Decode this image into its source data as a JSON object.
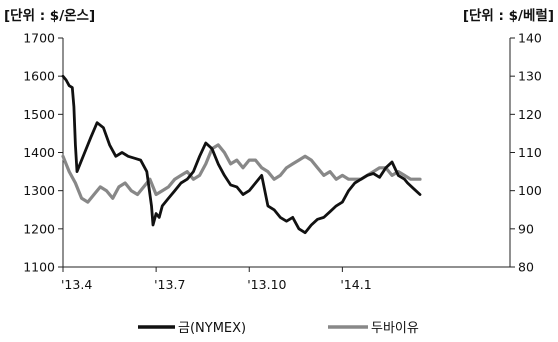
{
  "chart_data": {
    "type": "line",
    "title": "",
    "y_left_unit": "[단위 : $/온스]",
    "y_right_unit": "[단위 : $/베럴]",
    "y_left_lim": [
      1100,
      1700
    ],
    "y_left_ticks": [
      1100,
      1200,
      1300,
      1400,
      1500,
      1600,
      1700
    ],
    "y_right_lim": [
      80,
      140
    ],
    "y_right_ticks": [
      80,
      90,
      100,
      110,
      120,
      130,
      140
    ],
    "x_lim": [
      0,
      14.4
    ],
    "x_ticks": [
      {
        "pos": 0,
        "label": "'13.4"
      },
      {
        "pos": 3,
        "label": "'13.7"
      },
      {
        "pos": 6,
        "label": "'13.10"
      },
      {
        "pos": 9,
        "label": "'14.1"
      }
    ],
    "grid": false,
    "legend_position": "bottom",
    "series": [
      {
        "name": "금(NYMEX)",
        "axis": "left",
        "color": "#111111",
        "x": [
          0,
          0.1,
          0.2,
          0.3,
          0.35,
          0.4,
          0.45,
          0.5,
          0.7,
          0.9,
          1.1,
          1.3,
          1.5,
          1.7,
          1.9,
          2.1,
          2.3,
          2.5,
          2.7,
          2.85,
          2.9,
          3.0,
          3.1,
          3.2,
          3.4,
          3.6,
          3.8,
          4.0,
          4.2,
          4.4,
          4.6,
          4.8,
          4.9,
          5.0,
          5.2,
          5.4,
          5.6,
          5.8,
          6.0,
          6.2,
          6.4,
          6.6,
          6.8,
          7.0,
          7.2,
          7.4,
          7.6,
          7.8,
          8.0,
          8.2,
          8.4,
          8.6,
          8.8,
          9.0,
          9.2,
          9.4,
          9.6,
          9.8,
          10.0,
          10.2,
          10.4,
          10.6,
          10.8,
          11.0,
          11.1,
          11.3,
          11.5
        ],
        "values": [
          1600,
          1590,
          1575,
          1570,
          1520,
          1420,
          1350,
          1360,
          1400,
          1440,
          1478,
          1465,
          1420,
          1390,
          1400,
          1390,
          1385,
          1380,
          1350,
          1260,
          1210,
          1240,
          1230,
          1260,
          1280,
          1300,
          1320,
          1330,
          1350,
          1390,
          1425,
          1410,
          1390,
          1370,
          1340,
          1315,
          1310,
          1290,
          1300,
          1320,
          1340,
          1260,
          1250,
          1230,
          1220,
          1230,
          1200,
          1190,
          1210,
          1225,
          1230,
          1245,
          1260,
          1270,
          1300,
          1320,
          1330,
          1340,
          1345,
          1335,
          1360,
          1375,
          1340,
          1330,
          1320,
          1305,
          1290
        ]
      },
      {
        "name": "두바이유",
        "axis": "right",
        "color": "#888888",
        "x": [
          0,
          0.2,
          0.4,
          0.6,
          0.8,
          1.0,
          1.2,
          1.4,
          1.6,
          1.8,
          2.0,
          2.2,
          2.4,
          2.6,
          2.8,
          3.0,
          3.2,
          3.4,
          3.6,
          3.8,
          4.0,
          4.2,
          4.4,
          4.6,
          4.8,
          5.0,
          5.2,
          5.4,
          5.6,
          5.8,
          6.0,
          6.2,
          6.4,
          6.6,
          6.8,
          7.0,
          7.2,
          7.4,
          7.6,
          7.8,
          8.0,
          8.2,
          8.4,
          8.6,
          8.8,
          9.0,
          9.2,
          9.4,
          9.6,
          9.8,
          10.0,
          10.2,
          10.4,
          10.6,
          10.8,
          11.0,
          11.2,
          11.5
        ],
        "values": [
          109,
          105,
          102,
          98,
          97,
          99,
          101,
          100,
          98,
          101,
          102,
          100,
          99,
          101,
          103,
          99,
          100,
          101,
          103,
          104,
          105,
          103,
          104,
          107,
          111,
          112,
          110,
          107,
          108,
          106,
          108,
          108,
          106,
          105,
          103,
          104,
          106,
          107,
          108,
          109,
          108,
          106,
          104,
          105,
          103,
          104,
          103,
          103,
          103,
          104,
          105,
          106,
          106,
          104,
          105,
          104,
          103,
          103
        ]
      }
    ]
  }
}
